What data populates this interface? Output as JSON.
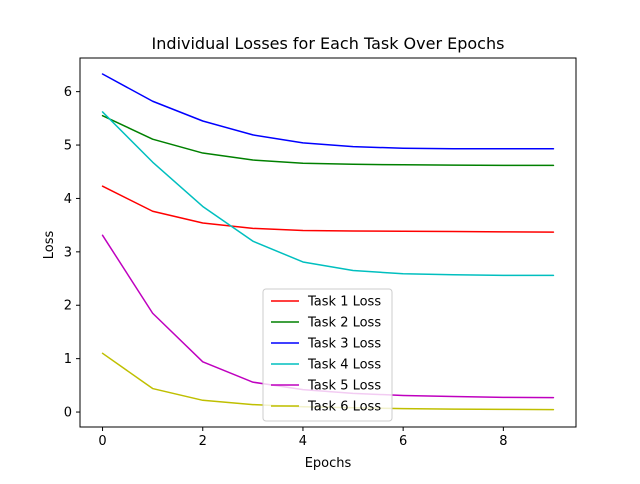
{
  "chart_data": {
    "type": "line",
    "title": "Individual Losses for Each Task Over Epochs",
    "xlabel": "Epochs",
    "ylabel": "Loss",
    "xlim": [
      -0.45,
      9.45
    ],
    "ylim": [
      -0.28,
      6.63
    ],
    "xticks": [
      0,
      2,
      4,
      6,
      8
    ],
    "yticks": [
      0,
      1,
      2,
      3,
      4,
      5,
      6
    ],
    "grid": false,
    "legend_position": "lower center",
    "x": [
      0,
      1,
      2,
      3,
      4,
      5,
      6,
      7,
      8,
      9
    ],
    "series": [
      {
        "name": "Task 1 Loss",
        "color": "#ff0000",
        "values": [
          4.23,
          3.76,
          3.54,
          3.44,
          3.4,
          3.39,
          3.385,
          3.38,
          3.375,
          3.37
        ]
      },
      {
        "name": "Task 2 Loss",
        "color": "#008000",
        "values": [
          5.55,
          5.11,
          4.85,
          4.72,
          4.66,
          4.64,
          4.63,
          4.625,
          4.62,
          4.62
        ]
      },
      {
        "name": "Task 3 Loss",
        "color": "#0000ff",
        "values": [
          6.33,
          5.82,
          5.45,
          5.19,
          5.04,
          4.97,
          4.94,
          4.93,
          4.93,
          4.93
        ]
      },
      {
        "name": "Task 4 Loss",
        "color": "#00bfbf",
        "values": [
          5.62,
          4.68,
          3.85,
          3.2,
          2.81,
          2.65,
          2.59,
          2.57,
          2.56,
          2.56
        ]
      },
      {
        "name": "Task 5 Loss",
        "color": "#bf00bf",
        "values": [
          3.31,
          1.85,
          0.94,
          0.56,
          0.42,
          0.35,
          0.31,
          0.29,
          0.275,
          0.27
        ]
      },
      {
        "name": "Task 6 Loss",
        "color": "#bfbf00",
        "values": [
          1.1,
          0.44,
          0.22,
          0.14,
          0.1,
          0.08,
          0.065,
          0.055,
          0.05,
          0.045
        ]
      }
    ]
  }
}
